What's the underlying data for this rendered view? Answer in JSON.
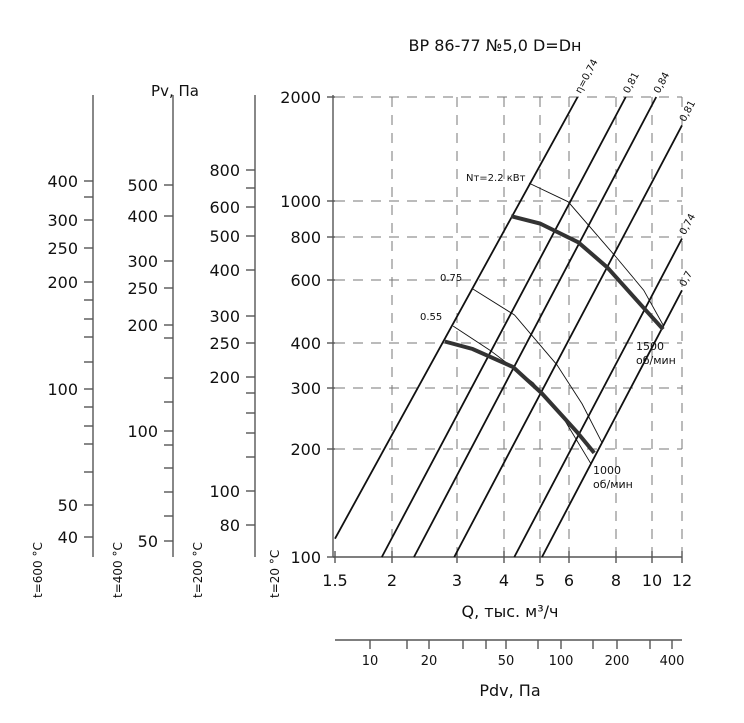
{
  "chart_data": {
    "type": "line",
    "title": "ВР 86-77 №5,0 D=Dн",
    "xlabel": "Q, тыс. м³/ч",
    "ylabel": "Pv, Па",
    "x_scale": "log",
    "y_scale": "log",
    "xlim": [
      1.5,
      12
    ],
    "ylim": [
      100,
      2000
    ],
    "grid": true,
    "x_ticks": [
      "1.5",
      "2",
      "3",
      "4",
      "5",
      "6",
      "8",
      "10",
      "12"
    ],
    "y_ticks": [
      "100",
      "200",
      "300",
      "400",
      "600",
      "800",
      "1000",
      "2000"
    ],
    "temperature_scales": [
      {
        "label": "t=600 °C",
        "ticks": [
          "400",
          "300",
          "250",
          "200",
          "100",
          "50",
          "40"
        ]
      },
      {
        "label": "t=400 °C",
        "ticks": [
          "500",
          "400",
          "300",
          "250",
          "200",
          "100",
          "50"
        ]
      },
      {
        "label": "t=200 °C",
        "ticks": [
          "800",
          "600",
          "500",
          "400",
          "300",
          "250",
          "200",
          "100",
          "80"
        ]
      },
      {
        "label": "t=20 °C",
        "ticks": []
      }
    ],
    "dynamic_pressure_scale": {
      "label": "Pdv, Па",
      "ticks": [
        "10",
        "20",
        "50",
        "100",
        "200",
        "400"
      ]
    },
    "efficiency_lines": [
      {
        "label": "η=0,74",
        "k": 50
      },
      {
        "label": "0,81",
        "k": 27.7
      },
      {
        "label": "0,84",
        "k": 19
      },
      {
        "label": "0,81",
        "k": 11.5
      },
      {
        "label": "0,74",
        "k": 5.5
      },
      {
        "label": "0,7",
        "k": 3.9
      }
    ],
    "fan_curves": [
      {
        "label": [
          "1500",
          "об/мин"
        ],
        "x": [
          4.18,
          5.0,
          6.35,
          7.58,
          9.45,
          10.7
        ],
        "y": [
          910,
          870,
          772,
          653,
          504,
          437
        ]
      },
      {
        "label": [
          "1000",
          "об/мин"
        ],
        "x": [
          2.78,
          3.3,
          4.23,
          5.05,
          6.3,
          7.0
        ],
        "y": [
          404,
          385,
          343,
          290,
          224,
          195
        ]
      }
    ],
    "power_curves": [
      {
        "label": "Nт=2.2 кВт",
        "x": [
          4.67,
          5.97,
          8.0,
          9.5,
          10.7
        ],
        "y": [
          1127,
          995,
          700,
          562,
          449
        ]
      },
      {
        "label": "0.75",
        "x": [
          3.31,
          4.27,
          5.56,
          6.5,
          7.34
        ],
        "y": [
          566,
          479,
          348,
          270,
          209
        ]
      },
      {
        "label": "0.55",
        "x": [
          2.93,
          3.67,
          4.8,
          5.8,
          6.86
        ],
        "y": [
          446,
          382,
          310,
          245,
          182
        ]
      }
    ]
  }
}
